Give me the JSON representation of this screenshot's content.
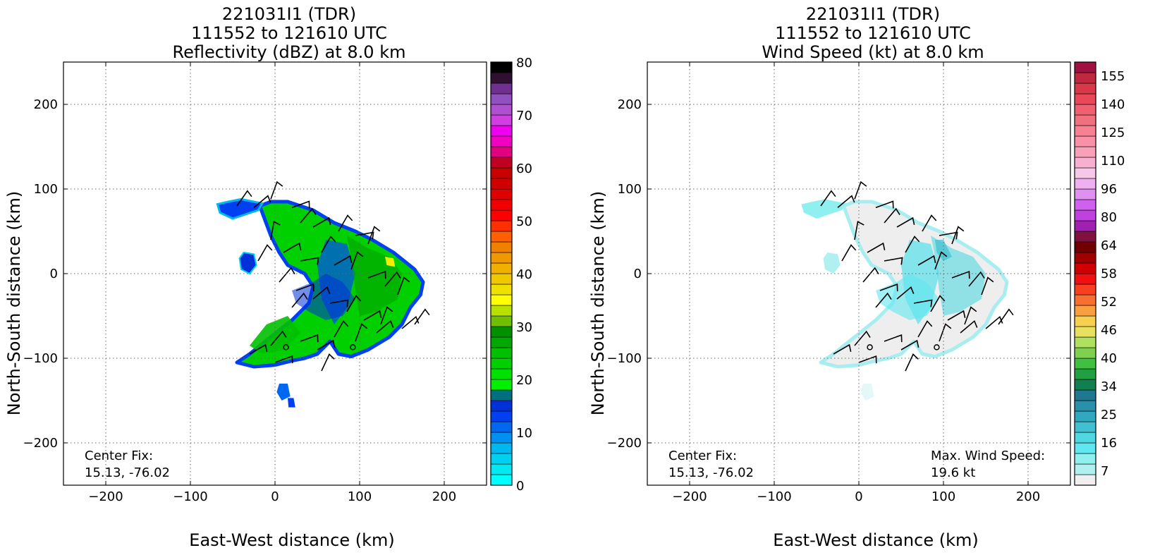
{
  "chart_data": [
    {
      "type": "heatmap",
      "title_lines": [
        "221031I1 (TDR)",
        "111552 to 121610 UTC",
        "Reflectivity (dBZ) at 8.0 km"
      ],
      "xlabel": "East-West distance (km)",
      "ylabel": "North-South distance (km)",
      "xlim": [
        -250,
        250
      ],
      "ylim": [
        -250,
        250
      ],
      "xticks": [
        -200,
        -100,
        0,
        100,
        200
      ],
      "yticks": [
        -200,
        -100,
        0,
        100,
        200
      ],
      "grid": true,
      "annotations": [
        {
          "text": "Center Fix:",
          "x": -225,
          "y": -215
        },
        {
          "text": "15.13, -76.02",
          "x": -225,
          "y": -235
        }
      ],
      "colorbar": {
        "label_values": [
          0,
          10,
          20,
          30,
          40,
          50,
          60,
          70,
          80
        ],
        "range": [
          0,
          80
        ],
        "colors": [
          "#00ffff",
          "#00e8f0",
          "#00d0f0",
          "#00b8f0",
          "#0090f0",
          "#0068f0",
          "#0040f0",
          "#0030d8",
          "#006f80",
          "#00f000",
          "#00e000",
          "#00d000",
          "#00c000",
          "#00a800",
          "#009000",
          "#70c000",
          "#b8e000",
          "#ffff00",
          "#f0e000",
          "#f0c800",
          "#f0b000",
          "#f09800",
          "#f08000",
          "#ff6000",
          "#ff3000",
          "#ff0000",
          "#f00000",
          "#e00000",
          "#d00000",
          "#c80000",
          "#c00020",
          "#e00080",
          "#f000c0",
          "#f000f0",
          "#d040e0",
          "#b050d0",
          "#9050c0",
          "#703090",
          "#301030",
          "#000000"
        ]
      },
      "point_markers": [
        {
          "x": 13,
          "y": -87
        },
        {
          "x": 92,
          "y": -87
        }
      ]
    },
    {
      "type": "heatmap",
      "title_lines": [
        "221031I1 (TDR)",
        "111552 to 121610 UTC",
        "Wind Speed (kt) at 8.0 km"
      ],
      "xlabel": "East-West distance (km)",
      "ylabel": "North-South distance (km)",
      "xlim": [
        -250,
        250
      ],
      "ylim": [
        -250,
        250
      ],
      "xticks": [
        -200,
        -100,
        0,
        100,
        200
      ],
      "yticks": [
        -200,
        -100,
        0,
        100,
        200
      ],
      "grid": true,
      "annotations": [
        {
          "text": "Center Fix:",
          "x": -225,
          "y": -215
        },
        {
          "text": "15.13, -76.02",
          "x": -225,
          "y": -235
        },
        {
          "text": "Max. Wind Speed:",
          "x": 85,
          "y": -215
        },
        {
          "text": "19.6 kt",
          "x": 85,
          "y": -235
        }
      ],
      "colorbar": {
        "label_values": [
          7,
          16,
          25,
          34,
          40,
          46,
          52,
          58,
          64,
          80,
          96,
          110,
          125,
          140,
          155
        ],
        "colors": [
          "#f0f0f0",
          "#b0f0f0",
          "#90f0f0",
          "#60e8f0",
          "#50d8e0",
          "#40c0d0",
          "#30a8c0",
          "#2890a8",
          "#207890",
          "#108050",
          "#20a040",
          "#40c040",
          "#80d050",
          "#b0e060",
          "#e8e060",
          "#f8d050",
          "#f8a040",
          "#f87030",
          "#f84020",
          "#f01010",
          "#d00000",
          "#a00000",
          "#700000",
          "#801040",
          "#a020b0",
          "#c040e0",
          "#d060f0",
          "#e090f0",
          "#f0b0f0",
          "#f8c8e8",
          "#f8b0d0",
          "#f8a0b8",
          "#f890a8",
          "#f88090",
          "#f07080",
          "#f06070",
          "#e84858",
          "#d83848",
          "#c02840",
          "#a01040"
        ]
      },
      "point_markers": [
        {
          "x": 13,
          "y": -87
        },
        {
          "x": 92,
          "y": -87
        }
      ],
      "max_wind_speed_kt": 19.6
    }
  ],
  "left_panel": {
    "title": [
      "221031I1 (TDR)",
      "111552 to 121610 UTC",
      "Reflectivity (dBZ) at 8.0 km"
    ],
    "xlabel": "East-West distance (km)",
    "ylabel": "North-South distance (km)",
    "center_fix_label": "Center Fix:",
    "center_fix_value": "15.13, -76.02"
  },
  "right_panel": {
    "title": [
      "221031I1 (TDR)",
      "111552 to 121610 UTC",
      "Wind Speed (kt) at 8.0 km"
    ],
    "xlabel": "East-West distance (km)",
    "ylabel": "North-South distance (km)",
    "center_fix_label": "Center Fix:",
    "center_fix_value": "15.13, -76.02",
    "max_wind_label": "Max. Wind Speed:",
    "max_wind_value": "19.6 kt"
  }
}
